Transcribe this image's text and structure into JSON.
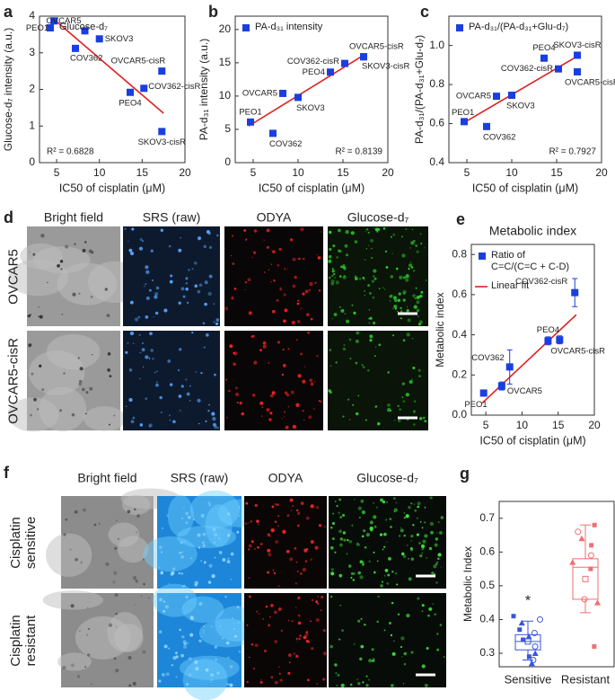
{
  "chart_data": [
    {
      "label": "a",
      "type": "scatter",
      "x_label": "IC50 of cisplatin (μM)",
      "y_label": "Glucose-d₇ intensity (a.u.)",
      "xlim": [
        3,
        20
      ],
      "xticks": [
        5,
        10,
        15,
        20
      ],
      "ylim": [
        0,
        4
      ],
      "yticks": [
        0,
        1,
        2,
        3,
        4
      ],
      "legend": "upper left",
      "series": [
        {
          "name": "Glucose-d₇",
          "color": "#1a3fe0",
          "x": [
            4.7,
            8.3,
            7.2,
            10,
            17.3,
            15.2,
            13.6,
            17.3
          ],
          "values": [
            3.87,
            3.6,
            3.12,
            3.38,
            2.5,
            2.03,
            1.92,
            0.85
          ],
          "point_labels": [
            "PEO1",
            "OVCAR5",
            "COV362",
            "SKOV3",
            "OVCAR5-cisR",
            "COV362-cisR",
            "PEO4",
            "SKOV3-cisR"
          ]
        }
      ],
      "fit": {
        "color": "#e02020",
        "x": [
          4.5,
          17.5
        ],
        "y": [
          3.95,
          1.35
        ]
      },
      "annotation": "R² = 0.6828"
    },
    {
      "label": "b",
      "type": "scatter",
      "x_label": "IC50 of cisplatin (μM)",
      "y_label": "PA-d₃₁ intensity (a.u.)",
      "xlim": [
        3,
        20
      ],
      "xticks": [
        5,
        10,
        15,
        20
      ],
      "ylim": [
        0,
        22
      ],
      "yticks": [
        0,
        5,
        10,
        15,
        20
      ],
      "legend": "upper left",
      "series": [
        {
          "name": "PA-d₃₁ intensity",
          "color": "#1a3fe0",
          "x": [
            4.7,
            7.2,
            8.3,
            10,
            13.6,
            15.2,
            17.3,
            17.3
          ],
          "values": [
            6.1,
            4.4,
            10.4,
            9.8,
            13.6,
            14.9,
            15.9,
            15.9
          ],
          "point_labels": [
            "PEO1",
            "COV362",
            "OVCAR5",
            "SKOV3",
            "PEO4",
            "COV362-cisR",
            "OVCAR5-cisR",
            "SKOV3-cisR"
          ]
        }
      ],
      "fit": {
        "color": "#e02020",
        "x": [
          4.5,
          17.5
        ],
        "y": [
          5.5,
          16.3
        ]
      },
      "annotation": "R² = 0.8139"
    },
    {
      "label": "c",
      "type": "scatter",
      "x_label": "IC50 of cisplatin (μM)",
      "y_label": "PA-d₃₁/(PA-d₃₁+Glu-d₇)",
      "xlim": [
        3,
        20
      ],
      "xticks": [
        5,
        10,
        15,
        20
      ],
      "ylim": [
        0.4,
        1.15
      ],
      "yticks": [
        0.4,
        0.6,
        0.8,
        {
          "value": 1,
          "label": "1.0"
        }
      ],
      "legend": "upper left",
      "series": [
        {
          "name": "PA-d₃₁/(PA-d₃₁+Glu-d₇)",
          "color": "#1a3fe0",
          "x": [
            4.7,
            7.2,
            8.3,
            10,
            13.6,
            15.2,
            17.3,
            17.3
          ],
          "values": [
            0.61,
            0.585,
            0.74,
            0.745,
            0.935,
            0.88,
            0.95,
            0.865
          ],
          "point_labels": [
            "PEO1",
            "COV362",
            "OVCAR5",
            "SKOV3",
            "PEO4",
            "COV362-cisR",
            "SKOV3-cisR",
            "OVCAR5-cisR"
          ]
        }
      ],
      "fit": {
        "color": "#e02020",
        "x": [
          4.5,
          17.5
        ],
        "y": [
          0.6,
          0.95
        ]
      },
      "annotation": "R² = 0.7927"
    },
    {
      "label": "e",
      "type": "scatter",
      "title": "Metabolic index",
      "x_label": "IC50 of cisplatin (μM)",
      "y_label": "Metabolic index",
      "xlim": [
        3,
        20
      ],
      "xticks": [
        5,
        10,
        15,
        20
      ],
      "ylim": [
        0,
        0.85
      ],
      "yticks": [
        {
          "value": 0,
          "label": "0.0"
        },
        0.2,
        0.4,
        0.6,
        0.8
      ],
      "legend": "upper left",
      "series": [
        {
          "name": "Ratio of\nC=C/(C=C + C-D)",
          "color": "#1a3fe0",
          "x": [
            4.7,
            7.2,
            8.3,
            13.6,
            15.2,
            17.3
          ],
          "values": [
            0.11,
            0.145,
            0.24,
            0.37,
            0.375,
            0.61
          ],
          "errors": [
            0.015,
            0.02,
            0.085,
            0.02,
            0.02,
            0.07
          ],
          "point_labels": [
            "PEO1",
            "OVCAR5",
            "COV362",
            "PEO4",
            "OVCAR5-cisR",
            "COV362-cisR"
          ]
        }
      ],
      "fit": {
        "name": "Linear fit",
        "color": "#e02020",
        "x": [
          4.5,
          17.5
        ],
        "y": [
          0.06,
          0.5
        ]
      }
    },
    {
      "label": "g",
      "type": "box",
      "y_label": "Metabolic Index",
      "categories": [
        "Sensitive",
        "Resistant"
      ],
      "ylim": [
        0.26,
        0.75
      ],
      "yticks": [
        0.3,
        0.4,
        0.5,
        0.6,
        0.7
      ],
      "annotation": "*",
      "boxes": [
        {
          "color": "#3a55e0",
          "whisker_low": 0.28,
          "q1": 0.31,
          "median": 0.335,
          "q3": 0.355,
          "whisker_high": 0.395,
          "mean": 0.335,
          "points": [
            0.41,
            0.4,
            0.39,
            0.37,
            0.36,
            0.35,
            0.34,
            0.32,
            0.3,
            0.29,
            0.28,
            0.27
          ]
        },
        {
          "color": "#f07070",
          "whisker_low": 0.42,
          "q1": 0.46,
          "median": 0.555,
          "q3": 0.58,
          "whisker_high": 0.68,
          "mean": 0.52,
          "points": [
            0.68,
            0.66,
            0.64,
            0.62,
            0.59,
            0.57,
            0.55,
            0.46,
            0.45,
            0.32
          ]
        }
      ]
    }
  ],
  "image_panels": [
    {
      "label": "d",
      "columns": [
        "Bright field",
        "SRS (raw)",
        "ODYA",
        "Glucose-d₇"
      ],
      "rows": [
        "OVCAR5",
        "OVCAR5-cisR"
      ]
    },
    {
      "label": "f",
      "columns": [
        "Bright field",
        "SRS (raw)",
        "ODYA",
        "Glucose-d₇"
      ],
      "rows": [
        "Cisplatin\nsensitive",
        "Cisplatin\nresistant"
      ]
    }
  ]
}
